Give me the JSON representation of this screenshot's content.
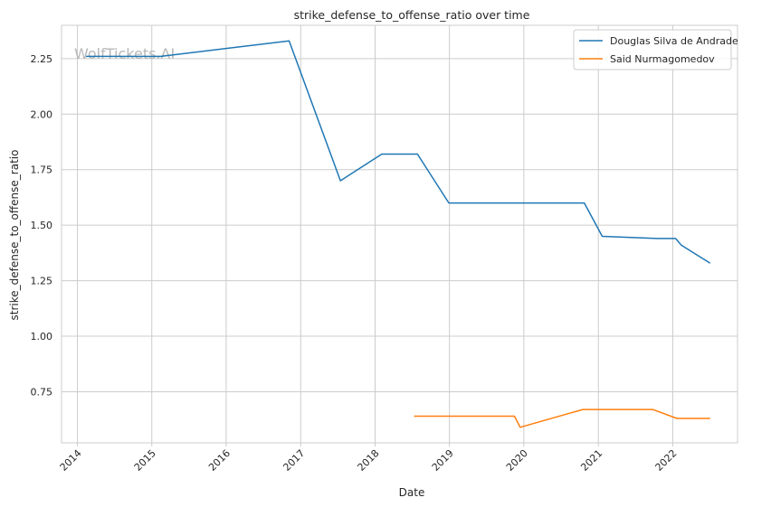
{
  "chart_data": {
    "type": "line",
    "title": "strike_defense_to_offense_ratio over time",
    "xlabel": "Date",
    "ylabel": "strike_defense_to_offense_ratio",
    "x_ticks": [
      "2014",
      "2015",
      "2016",
      "2017",
      "2018",
      "2019",
      "2020",
      "2021",
      "2022"
    ],
    "y_ticks": [
      "0.75",
      "1.00",
      "1.25",
      "1.50",
      "1.75",
      "2.00",
      "2.25"
    ],
    "xlim": [
      "2013-10-15",
      "2022-11-15"
    ],
    "ylim": [
      0.52,
      2.4
    ],
    "grid": true,
    "legend_position": "top-right",
    "watermark": "WolfTickets.AI",
    "series": [
      {
        "name": "Douglas Silva de Andrade",
        "color": "#1f77b4",
        "points": [
          {
            "x": "2014-02-15",
            "y": 2.26
          },
          {
            "x": "2015-02-15",
            "y": 2.26
          },
          {
            "x": "2016-11-05",
            "y": 2.33
          },
          {
            "x": "2017-07-15",
            "y": 1.7
          },
          {
            "x": "2018-02-03",
            "y": 1.82
          },
          {
            "x": "2018-07-28",
            "y": 1.82
          },
          {
            "x": "2018-12-29",
            "y": 1.6
          },
          {
            "x": "2020-10-24",
            "y": 1.6
          },
          {
            "x": "2021-01-20",
            "y": 1.45
          },
          {
            "x": "2021-10-16",
            "y": 1.44
          },
          {
            "x": "2022-01-15",
            "y": 1.44
          },
          {
            "x": "2022-02-12",
            "y": 1.41
          },
          {
            "x": "2022-07-01",
            "y": 1.33
          }
        ]
      },
      {
        "name": "Said Nurmagomedov",
        "color": "#ff7f0e",
        "points": [
          {
            "x": "2018-07-14",
            "y": 0.64
          },
          {
            "x": "2019-11-16",
            "y": 0.64
          },
          {
            "x": "2019-12-14",
            "y": 0.59
          },
          {
            "x": "2020-10-17",
            "y": 0.67
          },
          {
            "x": "2021-09-25",
            "y": 0.67
          },
          {
            "x": "2022-01-22",
            "y": 0.63
          },
          {
            "x": "2022-07-01",
            "y": 0.63
          }
        ]
      }
    ]
  }
}
